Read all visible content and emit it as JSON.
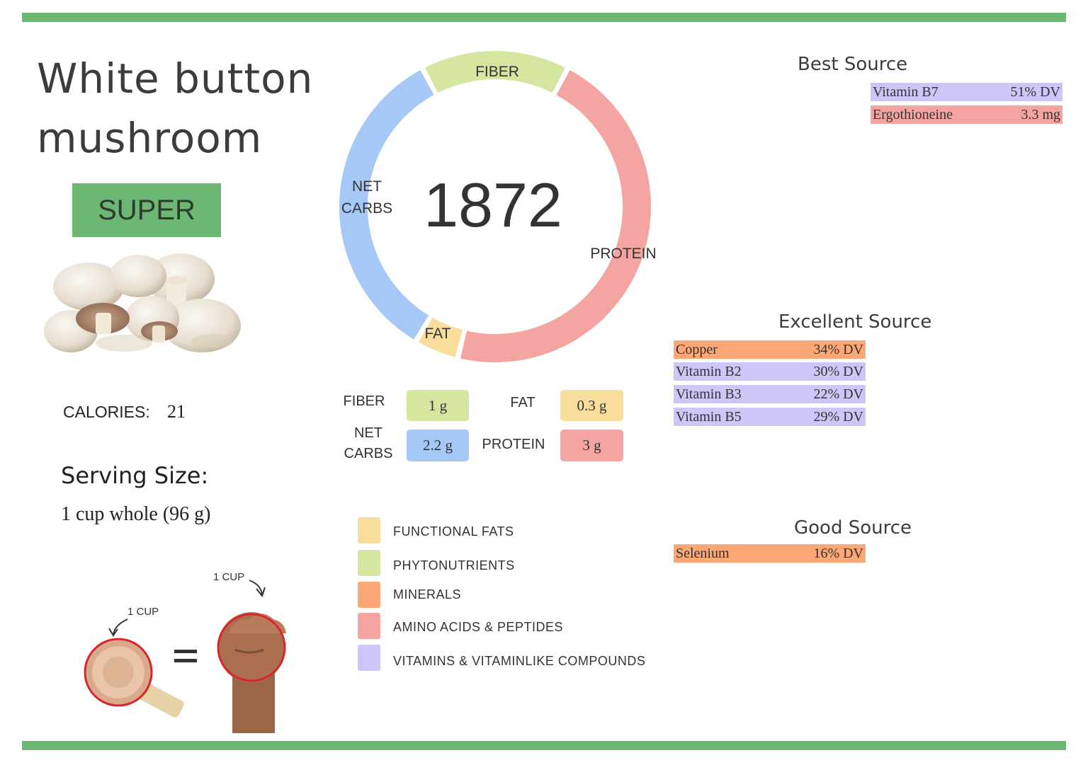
{
  "colors": {
    "green": "#6cb774",
    "fiber": "#d4e6a0",
    "net_carbs": "#a6c8f7",
    "fat": "#f8dd9c",
    "protein": "#f4a5a2",
    "minerals": "#fba776",
    "amino": "#f4a5a2",
    "vitamins": "#cfc5f8"
  },
  "title": {
    "line1": "White button",
    "line2": "mushroom"
  },
  "badge": "SUPER",
  "calories": {
    "label": "CALORIES:",
    "value": "21"
  },
  "serving": {
    "label": "Serving Size:",
    "value": "1 cup whole (96 g)"
  },
  "measure": {
    "cup_label_1": "1 CUP",
    "cup_label_2": "1 CUP",
    "equals": "="
  },
  "donut": {
    "center": "1872",
    "segments": [
      {
        "label": "FIBER",
        "value": 1
      },
      {
        "label": "PROTEIN",
        "value": 3
      },
      {
        "label": "FAT",
        "value": 0.3
      },
      {
        "label": "NET CARBS",
        "value": 2.2
      }
    ],
    "label_fiber": "FIBER",
    "label_protein": "PROTEIN",
    "label_fat": "FAT",
    "label_net_1": "NET",
    "label_net_2": "CARBS"
  },
  "macros": {
    "fiber": {
      "label": "FIBER",
      "value": "1 g"
    },
    "fat": {
      "label": "FAT",
      "value": "0.3 g"
    },
    "net_carbs": {
      "label_1": "NET",
      "label_2": "CARBS",
      "value": "2.2 g"
    },
    "protein": {
      "label": "PROTEIN",
      "value": "3 g"
    }
  },
  "legend": [
    {
      "label": "FUNCTIONAL  FATS",
      "color": "#f8dd9c"
    },
    {
      "label": "PHYTONUTRIENTS",
      "color": "#d4e6a0"
    },
    {
      "label": "MINERALS",
      "color": "#fba776"
    },
    {
      "label": "AMINO ACIDS & PEPTIDES",
      "color": "#f4a5a2"
    },
    {
      "label": "VITAMINS & VITAMINLIKE COMPOUNDS",
      "color": "#cfc5f8"
    }
  ],
  "best_source": {
    "title": "Best Source",
    "items": [
      {
        "name": "Vitamin B7",
        "value": "51% DV",
        "color": "#cfc5f8"
      },
      {
        "name": "Ergothioneine",
        "value": "3.3 mg",
        "color": "#f4a5a2"
      }
    ]
  },
  "excellent_source": {
    "title": "Excellent Source",
    "items": [
      {
        "name": "Copper",
        "value": "34% DV",
        "color": "#fba776"
      },
      {
        "name": "Vitamin B2",
        "value": "30% DV",
        "color": "#cfc5f8"
      },
      {
        "name": "Vitamin B3",
        "value": "22% DV",
        "color": "#cfc5f8"
      },
      {
        "name": "Vitamin B5",
        "value": "29% DV",
        "color": "#cfc5f8"
      }
    ]
  },
  "good_source": {
    "title": "Good Source",
    "items": [
      {
        "name": "Selenium",
        "value": "16% DV",
        "color": "#fba776"
      }
    ]
  }
}
